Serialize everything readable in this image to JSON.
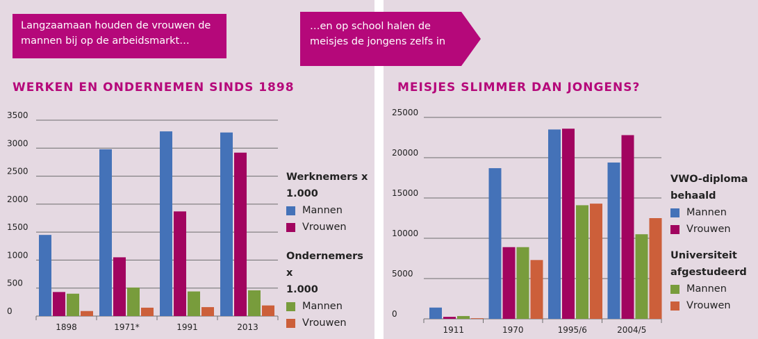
{
  "colors": {
    "panel_bg": "#e5d9e2",
    "accent": "#b5087a",
    "mannen_werk": "#4472b8",
    "vrouwen_werk": "#a1045f",
    "mannen_onder": "#789c3c",
    "vrouwen_onder": "#cc5f3a"
  },
  "left": {
    "callout": "Langzaamaan houden de vrouwen de\nmannen bij op de arbeidsmarkt…",
    "title": "Werken en ondernemen sinds 1898",
    "legend": {
      "group1_title": "Werknemers x\n1.000",
      "group1_items": [
        "Mannen",
        "Vrouwen"
      ],
      "group2_title": "Ondernemers x\n1.000",
      "group2_items": [
        "Mannen",
        "Vrouwen"
      ]
    }
  },
  "right": {
    "callout": "…en op school halen de\nmeisjes de jongens zelfs in",
    "title": "Meisjes slimmer dan jongens?",
    "legend": {
      "group1_title": "VWO-diploma\nbehaald",
      "group1_items": [
        "Mannen",
        "Vrouwen"
      ],
      "group2_title": "Universiteit\nafgestudeerd",
      "group2_items": [
        "Mannen",
        "Vrouwen"
      ]
    }
  },
  "chart_data": [
    {
      "type": "bar",
      "title": "Werken en ondernemen sinds 1898",
      "categories": [
        "1898",
        "1971*",
        "1991",
        "2013"
      ],
      "ylim": [
        0,
        3500
      ],
      "yticks": [
        0,
        500,
        1000,
        1500,
        2000,
        2500,
        3000,
        3500
      ],
      "grid": true,
      "legend_position": "right",
      "series": [
        {
          "name": "Werknemers x 1.000 Mannen",
          "values": [
            1450,
            2980,
            3300,
            3280
          ]
        },
        {
          "name": "Werknemers x 1.000 Vrouwen",
          "values": [
            430,
            1050,
            1870,
            2920
          ]
        },
        {
          "name": "Ondernemers x 1.000 Mannen",
          "values": [
            400,
            510,
            440,
            460
          ]
        },
        {
          "name": "Ondernemers x 1.000 Vrouwen",
          "values": [
            90,
            150,
            160,
            190
          ]
        }
      ]
    },
    {
      "type": "bar",
      "title": "Meisjes slimmer dan jongens?",
      "categories": [
        "1911",
        "1970",
        "1995/6",
        "2004/5"
      ],
      "ylim": [
        0,
        25000
      ],
      "yticks": [
        0,
        5000,
        10000,
        15000,
        20000,
        25000
      ],
      "grid": true,
      "legend_position": "right",
      "series": [
        {
          "name": "VWO-diploma behaald Mannen",
          "values": [
            1400,
            18700,
            23500,
            19400
          ]
        },
        {
          "name": "VWO-diploma behaald Vrouwen",
          "values": [
            250,
            8900,
            23600,
            22800
          ]
        },
        {
          "name": "Universiteit afgestudeerd Mannen",
          "values": [
            350,
            8900,
            14100,
            10500
          ]
        },
        {
          "name": "Universiteit afgestudeerd Vrouwen",
          "values": [
            80,
            7300,
            14300,
            12500
          ]
        }
      ]
    }
  ]
}
